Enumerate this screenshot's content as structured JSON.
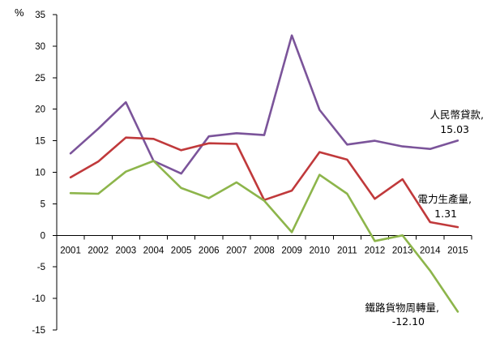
{
  "chart_data": {
    "type": "line",
    "ylabel": "%",
    "ylim": [
      -15,
      35
    ],
    "yticks": [
      -15,
      -10,
      -5,
      0,
      5,
      10,
      15,
      20,
      25,
      30,
      35
    ],
    "ytick_labels": [
      "-15",
      "-10",
      "-5",
      "0",
      "5",
      "10",
      "15",
      "20",
      "25",
      "30",
      "35"
    ],
    "grid": false,
    "legend": "none",
    "categories": [
      "2001",
      "2002",
      "2003",
      "2004",
      "2005",
      "2006",
      "2007",
      "2008",
      "2009",
      "2010",
      "2011",
      "2012",
      "2013",
      "2014",
      "2015"
    ],
    "series": [
      {
        "name": "人民幣貸款,",
        "end_label": "15.03",
        "color": "#7b549a",
        "values": [
          13.0,
          16.9,
          21.1,
          11.8,
          9.8,
          15.7,
          16.2,
          15.9,
          31.7,
          19.9,
          14.4,
          15.0,
          14.1,
          13.7,
          15.03
        ]
      },
      {
        "name": "電力生產量,",
        "end_label": "1.31",
        "color": "#c0393b",
        "values": [
          9.2,
          11.7,
          15.5,
          15.3,
          13.5,
          14.6,
          14.5,
          5.6,
          7.1,
          13.2,
          12.0,
          5.8,
          8.9,
          2.1,
          1.31
        ]
      },
      {
        "name": "鐵路貨物周轉量,",
        "end_label": "-12.10",
        "color": "#8db54b",
        "values": [
          6.7,
          6.6,
          10.1,
          11.8,
          7.5,
          5.9,
          8.4,
          5.5,
          0.5,
          9.6,
          6.6,
          -0.9,
          0.0,
          -5.6,
          -12.1
        ]
      }
    ]
  }
}
